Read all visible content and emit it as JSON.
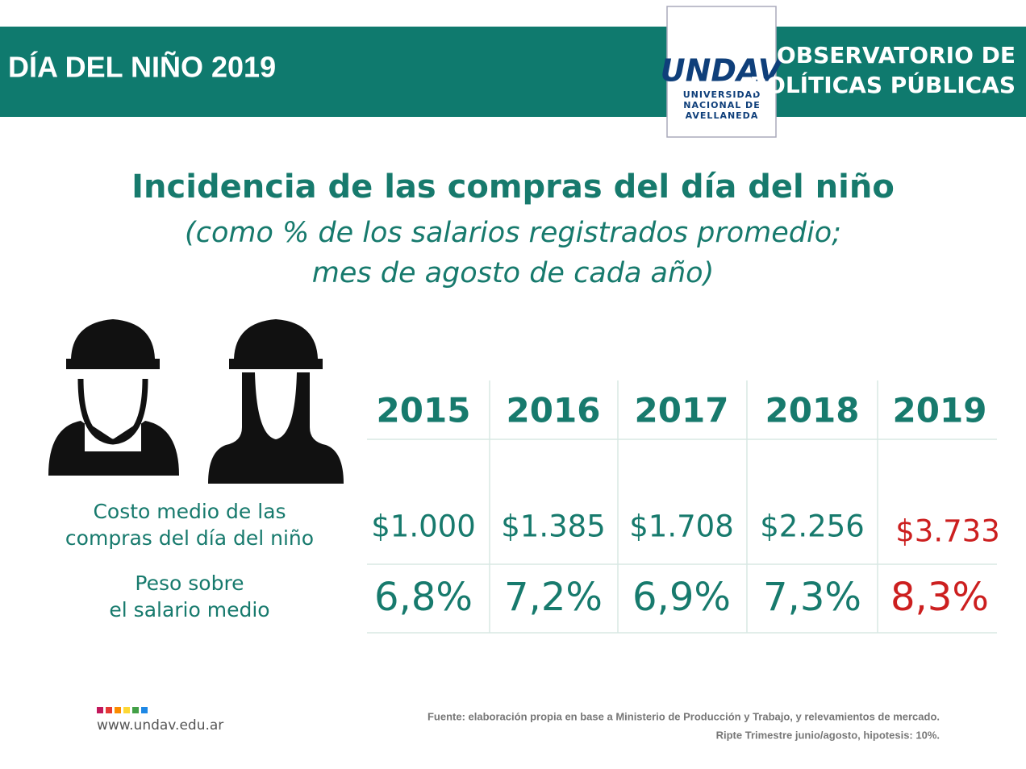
{
  "header": {
    "title": "DÍA DEL NIÑO 2019",
    "logo": "UNDAV",
    "logo_lines": [
      "UNIVERSIDAD",
      "NACIONAL DE",
      "AVELLANEDA"
    ],
    "org_lines": [
      "OBSERVATORIO DE",
      "POLÍTICAS PÚBLICAS"
    ]
  },
  "title": "Incidencia de las compras del día del niño",
  "subtitle_lines": [
    "(como % de los salarios registrados promedio;",
    "mes de agosto de cada año)"
  ],
  "table": {
    "years": [
      "2015",
      "2016",
      "2017",
      "2018",
      "2019"
    ],
    "row_labels": [
      [
        "Costo medio de las",
        "compras del día del niño"
      ],
      [
        "Peso sobre",
        "el salario medio"
      ]
    ],
    "rows": [
      [
        "$1.000",
        "$1.385",
        "$1.708",
        "$2.256",
        "$3.733"
      ],
      [
        "6,8%",
        "7,2%",
        "6,9%",
        "7,3%",
        "8,3%"
      ]
    ],
    "value_colors": [
      "#177a6d",
      "#177a6d",
      "#177a6d",
      "#177a6d",
      "#cc1f1f"
    ]
  },
  "footer": {
    "url": "www.undav.edu.ar",
    "source_lines": [
      "Fuente: elaboración propia en base a Ministerio de Producción y Trabajo, y relevamientos de mercado.",
      "Ripte  Trimestre junio/agosto, hipotesis: 10%."
    ]
  }
}
